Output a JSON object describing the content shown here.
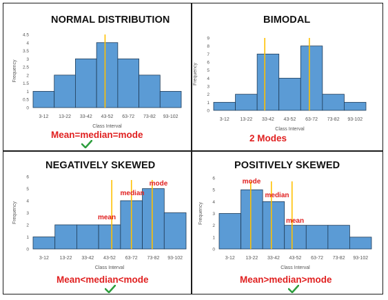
{
  "chart_data": [
    {
      "type": "bar",
      "title": "NORMAL DISTRIBUTION",
      "caption": "Mean=median=mode",
      "xlabel": "Class Interval",
      "ylabel": "Frequency",
      "categories": [
        "3-12",
        "13-22",
        "33-42",
        "43-52",
        "63-72",
        "73-82",
        "93-102"
      ],
      "values": [
        1,
        2,
        3,
        4,
        3,
        2,
        1
      ],
      "ylim": [
        0,
        4.5
      ],
      "yticks": [
        "0",
        "0.5",
        "1",
        "1.5",
        "2",
        "2.5",
        "3",
        "3.5",
        "4",
        "4.5"
      ],
      "markers": [
        {
          "position": 3.4,
          "label": ""
        }
      ]
    },
    {
      "type": "bar",
      "title": "BIMODAL",
      "caption": "2 Modes",
      "xlabel": "Class Interval",
      "ylabel": "Frequency",
      "categories": [
        "3-12",
        "13-22",
        "33-42",
        "43-52",
        "63-72",
        "73-82",
        "93-102"
      ],
      "values": [
        1,
        2,
        7,
        4,
        8,
        2,
        1
      ],
      "ylim": [
        0,
        9
      ],
      "yticks": [
        "0",
        "1",
        "2",
        "3",
        "4",
        "5",
        "6",
        "7",
        "8",
        "9"
      ],
      "markers": [
        {
          "position": 2.35,
          "label": ""
        },
        {
          "position": 4.4,
          "label": ""
        }
      ]
    },
    {
      "type": "bar",
      "title": "NEGATIVELY SKEWED",
      "caption": "Mean<median<mode",
      "xlabel": "Class Interval",
      "ylabel": "Frequency",
      "categories": [
        "3-12",
        "13-22",
        "33-42",
        "43-52",
        "63-72",
        "73-82",
        "93-102"
      ],
      "values": [
        1,
        2,
        2,
        2,
        4,
        5,
        3
      ],
      "ylim": [
        0,
        6
      ],
      "yticks": [
        "0",
        "1",
        "2",
        "3",
        "4",
        "5",
        "6"
      ],
      "markers": [
        {
          "position": 3.6,
          "label": "mean"
        },
        {
          "position": 4.5,
          "label": "median"
        },
        {
          "position": 5.45,
          "label": "mode"
        }
      ]
    },
    {
      "type": "bar",
      "title": "POSITIVELY SKEWED",
      "caption": "Mean>median>mode",
      "xlabel": "Class Interval",
      "ylabel": "Frequency",
      "categories": [
        "3-12",
        "13-22",
        "33-42",
        "43-52",
        "63-72",
        "73-82",
        "93-102"
      ],
      "values": [
        3,
        5,
        4,
        2,
        2,
        2,
        1
      ],
      "ylim": [
        0,
        6
      ],
      "yticks": [
        "0",
        "1",
        "2",
        "3",
        "4",
        "5",
        "6"
      ],
      "markers": [
        {
          "position": 1.45,
          "label": "mode"
        },
        {
          "position": 2.4,
          "label": "median"
        },
        {
          "position": 3.35,
          "label": "mean"
        }
      ]
    }
  ],
  "colors": {
    "bar_fill": "#5b9bd5",
    "bar_edge": "#1f3b57",
    "marker_line": "#ffc000",
    "label_red": "#e02020",
    "check_green": "#2e9e3e",
    "axis_text": "#555555"
  }
}
